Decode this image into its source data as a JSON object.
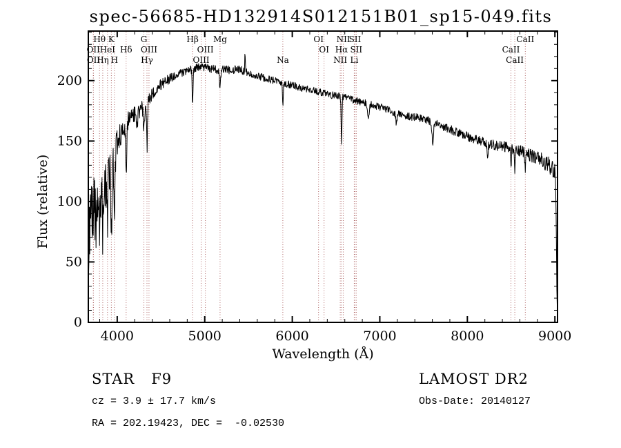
{
  "title": "spec-56685-HD132914S012151B01_sp15-049.fits",
  "chart_data": {
    "type": "line",
    "title": "spec-56685-HD132914S012151B01_sp15-049.fits",
    "xlabel": "Wavelength (Å)",
    "ylabel": "Flux (relative)",
    "xlim": [
      3670,
      9030
    ],
    "ylim": [
      0,
      241
    ],
    "xticks": [
      4000,
      5000,
      6000,
      7000,
      8000,
      9000
    ],
    "yticks": [
      0,
      50,
      100,
      150,
      200
    ],
    "x_minor_step": 200,
    "y_minor_step": 10,
    "grid": false,
    "legend": "none",
    "line_color": "#000000",
    "marker_line_color": "#aa5c5c",
    "wave_start": 3674,
    "wave_end": 9026,
    "wave_step": 4,
    "noise_seed": 20140127,
    "continuum": [
      [
        3674,
        60
      ],
      [
        3688,
        82
      ],
      [
        3705,
        90
      ],
      [
        3725,
        96
      ],
      [
        3745,
        88
      ],
      [
        3775,
        100
      ],
      [
        3805,
        108
      ],
      [
        3835,
        106
      ],
      [
        3865,
        113
      ],
      [
        3900,
        122
      ],
      [
        3935,
        128
      ],
      [
        3970,
        136
      ],
      [
        4000,
        148
      ],
      [
        4040,
        156
      ],
      [
        4080,
        162
      ],
      [
        4120,
        166
      ],
      [
        4160,
        169
      ],
      [
        4200,
        172
      ],
      [
        4250,
        175
      ],
      [
        4300,
        179
      ],
      [
        4350,
        184
      ],
      [
        4400,
        189
      ],
      [
        4450,
        193
      ],
      [
        4500,
        197
      ],
      [
        4550,
        199
      ],
      [
        4600,
        202
      ],
      [
        4650,
        204
      ],
      [
        4700,
        206
      ],
      [
        4750,
        207
      ],
      [
        4800,
        208
      ],
      [
        4850,
        209
      ],
      [
        4900,
        211
      ],
      [
        4950,
        211
      ],
      [
        5000,
        211
      ],
      [
        5050,
        210
      ],
      [
        5100,
        210
      ],
      [
        5150,
        209
      ],
      [
        5200,
        209
      ],
      [
        5300,
        209
      ],
      [
        5400,
        209
      ],
      [
        5450,
        208
      ],
      [
        5500,
        207
      ],
      [
        5550,
        205
      ],
      [
        5600,
        204
      ],
      [
        5650,
        203
      ],
      [
        5700,
        202
      ],
      [
        5750,
        201
      ],
      [
        5800,
        200
      ],
      [
        5850,
        199
      ],
      [
        5900,
        198
      ],
      [
        5950,
        197
      ],
      [
        6000,
        196
      ],
      [
        6050,
        195
      ],
      [
        6100,
        194
      ],
      [
        6150,
        193
      ],
      [
        6200,
        193
      ],
      [
        6250,
        192
      ],
      [
        6300,
        191
      ],
      [
        6350,
        190
      ],
      [
        6400,
        189
      ],
      [
        6450,
        188
      ],
      [
        6500,
        188
      ],
      [
        6550,
        187
      ],
      [
        6600,
        186
      ],
      [
        6650,
        185
      ],
      [
        6700,
        184
      ],
      [
        6750,
        183
      ],
      [
        6800,
        182
      ],
      [
        6850,
        181
      ],
      [
        6900,
        180
      ],
      [
        6950,
        179
      ],
      [
        7000,
        178
      ],
      [
        7050,
        177
      ],
      [
        7100,
        176
      ],
      [
        7150,
        174
      ],
      [
        7200,
        173
      ],
      [
        7250,
        172
      ],
      [
        7300,
        171
      ],
      [
        7350,
        170
      ],
      [
        7400,
        170
      ],
      [
        7450,
        169
      ],
      [
        7500,
        168
      ],
      [
        7550,
        167
      ],
      [
        7600,
        166
      ],
      [
        7650,
        164
      ],
      [
        7700,
        163
      ],
      [
        7750,
        161
      ],
      [
        7800,
        160
      ],
      [
        7850,
        158
      ],
      [
        7900,
        157
      ],
      [
        7950,
        155
      ],
      [
        8000,
        154
      ],
      [
        8050,
        152
      ],
      [
        8100,
        151
      ],
      [
        8150,
        150
      ],
      [
        8200,
        149
      ],
      [
        8250,
        148
      ],
      [
        8300,
        147
      ],
      [
        8350,
        146
      ],
      [
        8400,
        146
      ],
      [
        8450,
        145
      ],
      [
        8500,
        144
      ],
      [
        8550,
        143
      ],
      [
        8600,
        142
      ],
      [
        8650,
        140
      ],
      [
        8700,
        139
      ],
      [
        8750,
        137
      ],
      [
        8800,
        136
      ],
      [
        8850,
        134
      ],
      [
        8900,
        132
      ],
      [
        8950,
        129
      ],
      [
        9000,
        126
      ],
      [
        9008,
        118
      ],
      [
        9016,
        70
      ],
      [
        9022,
        28
      ],
      [
        9026,
        20
      ]
    ],
    "features": [
      {
        "center": 3760,
        "depth": 28,
        "sigma": 6
      },
      {
        "center": 3798,
        "depth": 28,
        "sigma": 5
      },
      {
        "center": 3835,
        "depth": 28,
        "sigma": 5
      },
      {
        "center": 3889,
        "depth": 32,
        "sigma": 5
      },
      {
        "center": 3934,
        "depth": 55,
        "sigma": 6
      },
      {
        "center": 3969,
        "depth": 45,
        "sigma": 6
      },
      {
        "center": 4102,
        "depth": 40,
        "sigma": 6
      },
      {
        "center": 4227,
        "depth": 12,
        "sigma": 6
      },
      {
        "center": 4305,
        "depth": 16,
        "sigma": 8
      },
      {
        "center": 4341,
        "depth": 38,
        "sigma": 5
      },
      {
        "center": 4861,
        "depth": 30,
        "sigma": 5
      },
      {
        "center": 5175,
        "depth": 14,
        "sigma": 7
      },
      {
        "center": 5460,
        "depth": -16,
        "sigma": 3
      },
      {
        "center": 5892,
        "depth": 18,
        "sigma": 5
      },
      {
        "center": 6563,
        "depth": 38,
        "sigma": 5
      },
      {
        "center": 6870,
        "depth": 12,
        "sigma": 8
      },
      {
        "center": 7190,
        "depth": 8,
        "sigma": 10
      },
      {
        "center": 7605,
        "depth": 16,
        "sigma": 9
      },
      {
        "center": 8230,
        "depth": 9,
        "sigma": 8
      },
      {
        "center": 8498,
        "depth": 14,
        "sigma": 5
      },
      {
        "center": 8542,
        "depth": 16,
        "sigma": 5
      },
      {
        "center": 8662,
        "depth": 14,
        "sigma": 5
      }
    ],
    "noise": [
      [
        3674,
        30
      ],
      [
        3760,
        28
      ],
      [
        3860,
        22
      ],
      [
        3960,
        15
      ],
      [
        4060,
        10
      ],
      [
        4200,
        7
      ],
      [
        4400,
        5
      ],
      [
        4700,
        3.5
      ],
      [
        5200,
        3.5
      ],
      [
        5800,
        3
      ],
      [
        6500,
        3
      ],
      [
        7200,
        3
      ],
      [
        7800,
        3.5
      ],
      [
        8300,
        4
      ],
      [
        8700,
        5
      ],
      [
        8950,
        7
      ],
      [
        9026,
        8
      ]
    ],
    "spectral_lines": [
      {
        "wavelength": 3727,
        "label": "OII",
        "row": 2
      },
      {
        "wavelength": 3729,
        "label": "OII",
        "row": 3
      },
      {
        "wavelength": 3798,
        "label": "Hθ",
        "row": 1
      },
      {
        "wavelength": 3835,
        "label": "Hη",
        "row": 3
      },
      {
        "wavelength": 3889,
        "label": "HeI",
        "row": 2
      },
      {
        "wavelength": 3933,
        "label": "K",
        "row": 1
      },
      {
        "wavelength": 3968,
        "label": "H",
        "row": 3
      },
      {
        "wavelength": 4102,
        "label": "Hδ",
        "row": 2
      },
      {
        "wavelength": 4305,
        "label": "G",
        "row": 1
      },
      {
        "wavelength": 4340,
        "label": "Hγ",
        "row": 3
      },
      {
        "wavelength": 4363,
        "label": "OIII",
        "row": 2
      },
      {
        "wavelength": 4861,
        "label": "Hβ",
        "row": 1
      },
      {
        "wavelength": 4959,
        "label": "OIII",
        "row": 3
      },
      {
        "wavelength": 5007,
        "label": "OIII",
        "row": 2
      },
      {
        "wavelength": 5175,
        "label": "Mg",
        "row": 1
      },
      {
        "wavelength": 5892,
        "label": "Na",
        "row": 3
      },
      {
        "wavelength": 6300,
        "label": "OI",
        "row": 1
      },
      {
        "wavelength": 6363,
        "label": "OI",
        "row": 2
      },
      {
        "wavelength": 6548,
        "label": "NII",
        "row": 3
      },
      {
        "wavelength": 6563,
        "label": "Hα",
        "row": 2
      },
      {
        "wavelength": 6583,
        "label": "NII",
        "row": 1
      },
      {
        "wavelength": 6708,
        "label": "Li",
        "row": 3
      },
      {
        "wavelength": 6716,
        "label": "SII",
        "row": 1
      },
      {
        "wavelength": 6731,
        "label": "SII",
        "row": 2
      },
      {
        "wavelength": 8498,
        "label": "CaII",
        "row": 2
      },
      {
        "wavelength": 8542,
        "label": "CaII",
        "row": 3
      },
      {
        "wavelength": 8662,
        "label": "CaII",
        "row": 1
      }
    ]
  },
  "footer": {
    "object_type": "STAR",
    "subclass": "F9",
    "survey": "LAMOST DR2",
    "cz": "cz = 3.9 ± 17.7 km/s",
    "obs_date": "Obs-Date: 20140127",
    "coords": "RA = 202.19423, DEC =  -0.02530"
  }
}
